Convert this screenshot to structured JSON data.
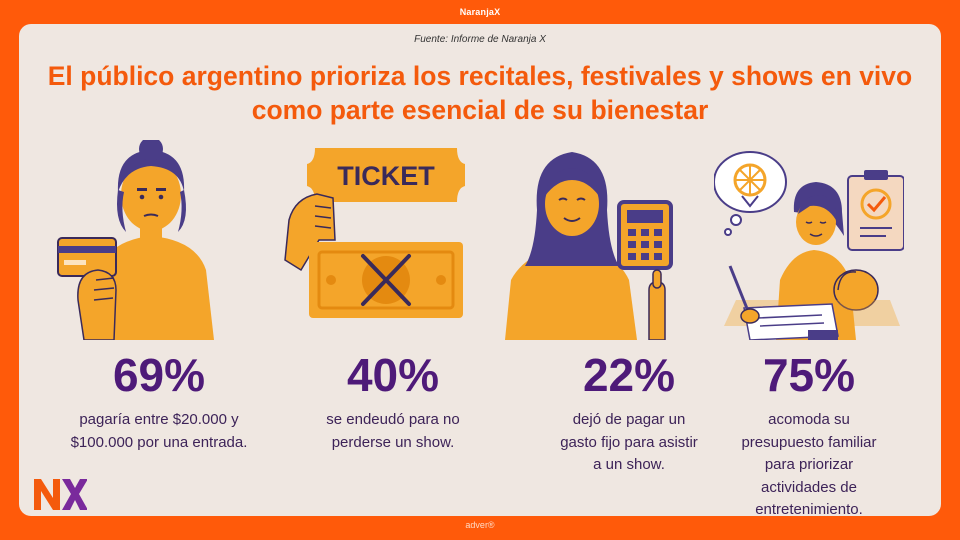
{
  "brand": "NaranjaX",
  "footer_brand": "adver®",
  "source": "Fuente: Informe de Naranja X",
  "title": "El público argentino prioriza los recitales, festivales y shows en vivo como parte esencial de su bienestar",
  "ticket_text": "TICKET",
  "logo_text": "NX",
  "colors": {
    "background": "#ff5a0a",
    "card": "#efe7e1",
    "title": "#f45a0c",
    "stat": "#4e1a79",
    "illustration": "#f4a52a"
  },
  "stats": [
    {
      "value": "69%",
      "text": "pagaría entre $20.000 y $100.000 por una entrada.",
      "icon": "woman-holding-card-icon"
    },
    {
      "value": "40%",
      "text": "se endeudó para no perderse un show.",
      "icon": "ticket-and-crossed-money-icon"
    },
    {
      "value": "22%",
      "text": "dejó de pagar un gasto fijo para asistir a un show.",
      "icon": "woman-with-calculator-icon"
    },
    {
      "value": "75%",
      "text": "acomoda su presupuesto familiar para priorizar actividades de entretenimiento.",
      "icon": "mother-with-baby-budgeting-icon"
    }
  ]
}
